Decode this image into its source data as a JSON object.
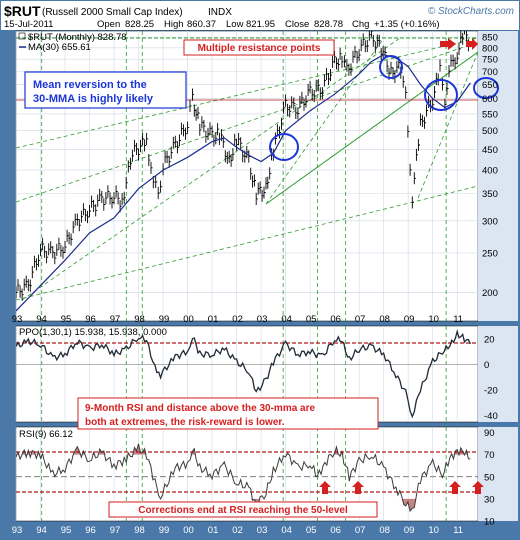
{
  "header": {
    "symbol": "$RUT",
    "name": "(Russell 2000 Small Cap Index)",
    "exchange": "INDX",
    "watermark": "© StockCharts.com",
    "date": "15-Jul-2011",
    "ohlc": [
      {
        "label": "Open",
        "value": "828.25"
      },
      {
        "label": "High",
        "value": "860.37"
      },
      {
        "label": "Low",
        "value": "821.95"
      },
      {
        "label": "Close",
        "value": "828.78"
      },
      {
        "label": "Chg",
        "value": "+1.35 (+0.16%)"
      }
    ]
  },
  "colors": {
    "frame_bg": "#4a78a8",
    "plot_bg": "#ffffff",
    "axis_bg": "#dbe6f2",
    "price": "#000000",
    "ma": "#1e2d8c",
    "trend_green": "#2e9a2e",
    "resistance_red": "#b0191b",
    "annotation_red": "#d61f1f",
    "circle_blue": "#1c35d6",
    "rsi_fill": "#b05050"
  },
  "chart_data": [
    {
      "type": "line",
      "panel": "price",
      "title": "$RUT (Monthly) 828.78",
      "scale": "log",
      "ylim": [
        170,
        880
      ],
      "ticks_y": [
        200,
        250,
        300,
        350,
        400,
        450,
        500,
        550,
        600,
        650,
        700,
        750,
        800,
        850
      ],
      "x_labels": [
        "93",
        "94",
        "95",
        "96",
        "97",
        "98",
        "99",
        "00",
        "01",
        "02",
        "03",
        "04",
        "05",
        "06",
        "07",
        "08",
        "09",
        "10",
        "11"
      ],
      "series": [
        {
          "name": "$RUT (Monthly) 828.78",
          "x": [
            1993.0,
            1993.5,
            1994.0,
            1994.5,
            1995.0,
            1995.5,
            1996.0,
            1996.5,
            1997.0,
            1997.33,
            1997.75,
            1998.33,
            1998.6,
            1998.8,
            1999.0,
            1999.5,
            2000.0,
            2000.2,
            2000.5,
            2001.0,
            2001.3,
            2001.7,
            2002.0,
            2002.5,
            2002.8,
            2003.2,
            2003.5,
            2004.0,
            2004.5,
            2005.0,
            2005.5,
            2006.0,
            2006.3,
            2006.5,
            2007.0,
            2007.5,
            2007.9,
            2008.3,
            2008.7,
            2008.9,
            2009.17,
            2009.5,
            2010.0,
            2010.3,
            2010.5,
            2010.75,
            2011.0,
            2011.3,
            2011.54
          ],
          "y": [
            200,
            208,
            255,
            250,
            260,
            300,
            320,
            340,
            345,
            335,
            440,
            470,
            380,
            345,
            410,
            460,
            520,
            600,
            515,
            485,
            490,
            420,
            475,
            420,
            350,
            360,
            450,
            575,
            570,
            620,
            640,
            735,
            765,
            700,
            795,
            850,
            800,
            690,
            720,
            600,
            345,
            515,
            600,
            700,
            600,
            720,
            780,
            865,
            828.78
          ]
        },
        {
          "name": "MA(30) 655.61",
          "x": [
            1993.0,
            1995.0,
            1996.0,
            1997.0,
            1998.0,
            1999.0,
            2000.0,
            2001.0,
            2001.5,
            2002.0,
            2002.5,
            2003.0,
            2003.5,
            2004.0,
            2005.0,
            2006.0,
            2007.0,
            2007.5,
            2008.0,
            2008.5,
            2009.0,
            2009.5,
            2010.0,
            2010.5,
            2011.0,
            2011.54
          ],
          "y": [
            180,
            240,
            280,
            305,
            360,
            400,
            430,
            470,
            480,
            455,
            435,
            420,
            440,
            500,
            560,
            615,
            690,
            740,
            770,
            755,
            720,
            650,
            600,
            570,
            590,
            655.61
          ]
        }
      ],
      "annotations": [
        "Multiple resistance points",
        "Mean reversion to the 30-MMA is highly likely"
      ]
    },
    {
      "type": "line",
      "panel": "ppo",
      "title": "PPO(1,30,1) 15.938, 15.938, 0.000",
      "ylim": [
        -45,
        30
      ],
      "ticks_y": [
        -40,
        -20,
        0,
        20
      ],
      "series": [
        {
          "name": "PPO(1,30,1) 15.938",
          "x": [
            1993.0,
            1993.5,
            1994.0,
            1994.5,
            1995.0,
            1995.5,
            1996.0,
            1996.5,
            1997.0,
            1997.5,
            1998.0,
            1998.33,
            1998.67,
            1998.9,
            1999.5,
            2000.0,
            2000.2,
            2000.5,
            2001.0,
            2001.5,
            2002.0,
            2002.5,
            2002.8,
            2003.2,
            2003.5,
            2004.0,
            2004.5,
            2005.0,
            2005.5,
            2006.0,
            2006.3,
            2006.6,
            2007.0,
            2007.5,
            2008.0,
            2008.5,
            2008.9,
            2009.17,
            2009.5,
            2010.0,
            2010.4,
            2010.7,
            2011.0,
            2011.3,
            2011.54
          ],
          "y": [
            14,
            18,
            16,
            5,
            8,
            18,
            12,
            16,
            8,
            12,
            22,
            18,
            -2,
            -8,
            6,
            10,
            22,
            8,
            8,
            12,
            2,
            -5,
            -22,
            -12,
            2,
            16,
            8,
            10,
            6,
            20,
            18,
            4,
            12,
            14,
            8,
            -8,
            -22,
            -40,
            -20,
            2,
            10,
            14,
            24,
            20,
            15.938
          ]
        }
      ],
      "annotations": [
        "9-Month RSI and distance above the 30-mma are both at extremes, the risk-reward is lower."
      ]
    },
    {
      "type": "line",
      "panel": "rsi",
      "title": "RSI(9) 66.12",
      "ylim": [
        10,
        95
      ],
      "ticks_y": [
        30,
        50,
        70
      ],
      "series": [
        {
          "name": "RSI(9) 66.12",
          "x": [
            1993.0,
            1993.5,
            1994.0,
            1994.5,
            1995.0,
            1995.5,
            1996.0,
            1996.5,
            1997.0,
            1997.5,
            1998.0,
            1998.33,
            1998.67,
            1998.9,
            1999.5,
            2000.0,
            2000.2,
            2000.5,
            2001.0,
            2001.5,
            2002.0,
            2002.5,
            2002.8,
            2003.2,
            2003.5,
            2004.0,
            2004.5,
            2005.0,
            2005.3,
            2005.6,
            2006.0,
            2006.3,
            2006.6,
            2007.0,
            2007.5,
            2008.0,
            2008.5,
            2008.9,
            2009.17,
            2009.5,
            2010.0,
            2010.4,
            2010.7,
            2011.0,
            2011.3,
            2011.54
          ],
          "y": [
            68,
            72,
            70,
            52,
            58,
            74,
            66,
            72,
            60,
            66,
            76,
            70,
            45,
            32,
            58,
            62,
            76,
            58,
            52,
            60,
            45,
            40,
            25,
            36,
            55,
            72,
            58,
            62,
            50,
            62,
            74,
            70,
            50,
            64,
            70,
            58,
            40,
            26,
            18,
            48,
            62,
            52,
            66,
            74,
            72,
            66.12
          ]
        }
      ],
      "annotations": [
        "Corrections end at RSI reaching the 50-level"
      ]
    }
  ]
}
